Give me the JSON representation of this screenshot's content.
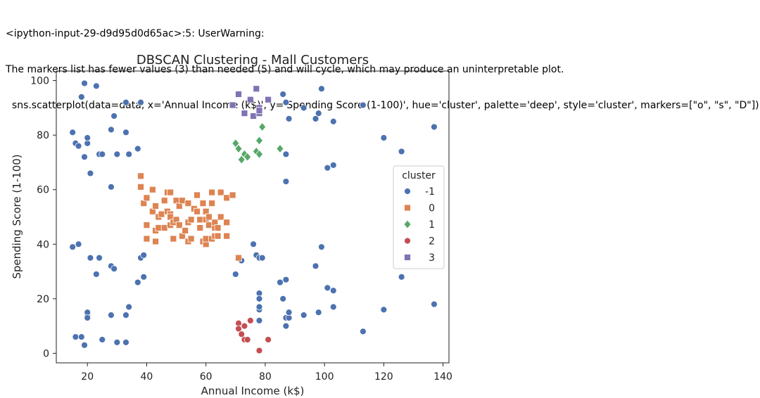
{
  "console": {
    "line1": "<ipython-input-29-d9d95d0d65ac>:5: UserWarning:",
    "line2": "The markers list has fewer values (3) than needed (5) and will cycle, which may produce an uninterpretable plot.",
    "line3": "  sns.scatterplot(data=data, x='Annual Income (k$)', y='Spending Score (1-100)', hue='cluster', palette='deep', style='cluster', markers=[\"o\", \"s\", \"D\"])"
  },
  "chart_data": {
    "type": "scatter",
    "title": "DBSCAN Clustering - Mall Customers",
    "xlabel": "Annual Income (k$)",
    "ylabel": "Spending Score (1-100)",
    "xlim": [
      9.5,
      142
    ],
    "ylim": [
      -3.5,
      103.5
    ],
    "xticks": [
      20,
      40,
      60,
      80,
      100,
      120,
      140
    ],
    "yticks": [
      0,
      20,
      40,
      60,
      80,
      100
    ],
    "grid": false,
    "legend": {
      "title": "cluster",
      "placement": "center-right",
      "entries": [
        {
          "label": "-1",
          "color": "#4c72b0",
          "marker": "circle"
        },
        {
          "label": "0",
          "color": "#dd8452",
          "marker": "square"
        },
        {
          "label": "1",
          "color": "#55a868",
          "marker": "diamond"
        },
        {
          "label": "2",
          "color": "#c44e52",
          "marker": "circle"
        },
        {
          "label": "3",
          "color": "#8172b3",
          "marker": "square"
        }
      ]
    },
    "series": [
      {
        "name": "-1",
        "color": "#4c72b0",
        "marker": "circle",
        "points": [
          [
            15,
            39
          ],
          [
            15,
            81
          ],
          [
            16,
            6
          ],
          [
            16,
            77
          ],
          [
            17,
            40
          ],
          [
            17,
            76
          ],
          [
            18,
            6
          ],
          [
            18,
            94
          ],
          [
            19,
            3
          ],
          [
            19,
            72
          ],
          [
            19,
            99
          ],
          [
            20,
            14
          ],
          [
            20,
            15
          ],
          [
            20,
            77
          ],
          [
            20,
            79
          ],
          [
            20,
            13
          ],
          [
            21,
            35
          ],
          [
            21,
            66
          ],
          [
            23,
            29
          ],
          [
            23,
            98
          ],
          [
            24,
            35
          ],
          [
            24,
            73
          ],
          [
            25,
            5
          ],
          [
            25,
            73
          ],
          [
            28,
            14
          ],
          [
            28,
            32
          ],
          [
            28,
            61
          ],
          [
            28,
            82
          ],
          [
            29,
            31
          ],
          [
            29,
            87
          ],
          [
            30,
            4
          ],
          [
            30,
            73
          ],
          [
            33,
            4
          ],
          [
            33,
            14
          ],
          [
            33,
            81
          ],
          [
            33,
            92
          ],
          [
            34,
            17
          ],
          [
            34,
            73
          ],
          [
            37,
            26
          ],
          [
            37,
            75
          ],
          [
            38,
            35
          ],
          [
            38,
            92
          ],
          [
            39,
            36
          ],
          [
            39,
            28
          ],
          [
            70,
            29
          ],
          [
            72,
            34
          ],
          [
            76,
            40
          ],
          [
            77,
            36
          ],
          [
            78,
            35
          ],
          [
            78,
            22
          ],
          [
            78,
            20
          ],
          [
            78,
            16
          ],
          [
            78,
            17
          ],
          [
            78,
            12
          ],
          [
            78,
            1
          ],
          [
            79,
            35
          ],
          [
            85,
            26
          ],
          [
            86,
            20
          ],
          [
            87,
            27
          ],
          [
            87,
            10
          ],
          [
            87,
            13
          ],
          [
            88,
            13
          ],
          [
            88,
            15
          ],
          [
            86,
            95
          ],
          [
            87,
            92
          ],
          [
            87,
            63
          ],
          [
            87,
            73
          ],
          [
            88,
            86
          ],
          [
            93,
            90
          ],
          [
            93,
            14
          ],
          [
            97,
            32
          ],
          [
            97,
            86
          ],
          [
            98,
            88
          ],
          [
            98,
            15
          ],
          [
            99,
            39
          ],
          [
            99,
            97
          ],
          [
            101,
            24
          ],
          [
            101,
            68
          ],
          [
            103,
            23
          ],
          [
            103,
            17
          ],
          [
            103,
            85
          ],
          [
            103,
            69
          ],
          [
            113,
            8
          ],
          [
            113,
            91
          ],
          [
            120,
            16
          ],
          [
            120,
            79
          ],
          [
            126,
            74
          ],
          [
            126,
            28
          ],
          [
            137,
            18
          ],
          [
            137,
            83
          ]
        ]
      },
      {
        "name": "0",
        "color": "#dd8452",
        "marker": "square",
        "points": [
          [
            38,
            61
          ],
          [
            38,
            65
          ],
          [
            39,
            55
          ],
          [
            40,
            47
          ],
          [
            40,
            42
          ],
          [
            40,
            57
          ],
          [
            42,
            52
          ],
          [
            42,
            60
          ],
          [
            43,
            54
          ],
          [
            43,
            45
          ],
          [
            43,
            41
          ],
          [
            44,
            50
          ],
          [
            44,
            46
          ],
          [
            45,
            51
          ],
          [
            46,
            46
          ],
          [
            46,
            56
          ],
          [
            47,
            52
          ],
          [
            47,
            59
          ],
          [
            48,
            51
          ],
          [
            48,
            59
          ],
          [
            48,
            50
          ],
          [
            48,
            47
          ],
          [
            49,
            42
          ],
          [
            49,
            48
          ],
          [
            50,
            49
          ],
          [
            50,
            56
          ],
          [
            51,
            54
          ],
          [
            51,
            47
          ],
          [
            52,
            56
          ],
          [
            52,
            43
          ],
          [
            53,
            45
          ],
          [
            54,
            41
          ],
          [
            54,
            48
          ],
          [
            54,
            55
          ],
          [
            55,
            42
          ],
          [
            55,
            49
          ],
          [
            56,
            53
          ],
          [
            57,
            52
          ],
          [
            57,
            58
          ],
          [
            58,
            46
          ],
          [
            58,
            49
          ],
          [
            59,
            55
          ],
          [
            59,
            41
          ],
          [
            60,
            49
          ],
          [
            60,
            40
          ],
          [
            60,
            42
          ],
          [
            60,
            52
          ],
          [
            61,
            47
          ],
          [
            61,
            50
          ],
          [
            62,
            42
          ],
          [
            62,
            59
          ],
          [
            62,
            55
          ],
          [
            63,
            43
          ],
          [
            63,
            46
          ],
          [
            63,
            48
          ],
          [
            64,
            46
          ],
          [
            64,
            43
          ],
          [
            65,
            50
          ],
          [
            65,
            59
          ],
          [
            67,
            43
          ],
          [
            67,
            57
          ],
          [
            67,
            48
          ],
          [
            69,
            58
          ],
          [
            71,
            35
          ]
        ]
      },
      {
        "name": "1",
        "color": "#55a868",
        "marker": "diamond",
        "points": [
          [
            70,
            77
          ],
          [
            71,
            75
          ],
          [
            72,
            71
          ],
          [
            73,
            73
          ],
          [
            74,
            72
          ],
          [
            77,
            74
          ],
          [
            78,
            73
          ],
          [
            78,
            78
          ],
          [
            79,
            83
          ],
          [
            85,
            75
          ]
        ]
      },
      {
        "name": "2",
        "color": "#c44e52",
        "marker": "circle",
        "points": [
          [
            71,
            11
          ],
          [
            71,
            9
          ],
          [
            72,
            7
          ],
          [
            73,
            5
          ],
          [
            73,
            10
          ],
          [
            74,
            5
          ],
          [
            75,
            12
          ],
          [
            78,
            1
          ],
          [
            81,
            5
          ]
        ]
      },
      {
        "name": "3",
        "color": "#8172b3",
        "marker": "square",
        "points": [
          [
            69,
            91
          ],
          [
            71,
            95
          ],
          [
            73,
            88
          ],
          [
            75,
            93
          ],
          [
            76,
            87
          ],
          [
            77,
            97
          ],
          [
            78,
            90
          ],
          [
            78,
            88
          ],
          [
            78,
            89
          ],
          [
            81,
            93
          ]
        ]
      }
    ]
  }
}
